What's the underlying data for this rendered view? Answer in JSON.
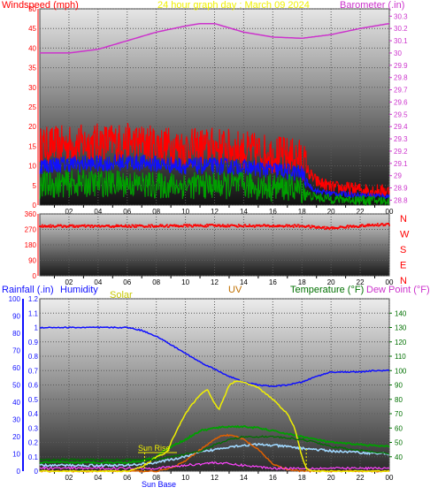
{
  "colors": {
    "red": "#ff0000",
    "blue": "#1010ff",
    "green": "#00a000",
    "magenta": "#cc33cc",
    "yellow": "#f0f000",
    "orange": "#e06000",
    "darkgreen": "#007000",
    "gold": "#c8c800",
    "olive": "#808000",
    "darkorange": "#c07000",
    "lightblue": "#a0d8ff",
    "pink": "#ff44ff"
  },
  "chart_data": [
    {
      "type": "line",
      "title": "24 hour graph day : March 09 2024",
      "x_ticks": [
        "02",
        "04",
        "06",
        "08",
        "10",
        "12",
        "14",
        "16",
        "18",
        "20",
        "22",
        "00"
      ],
      "left_axis": {
        "label": "Windspeed (mph)",
        "ticks": [
          0,
          5,
          10,
          15,
          20,
          25,
          30,
          35,
          40,
          45,
          50
        ],
        "range": [
          0,
          50
        ]
      },
      "right_axis": {
        "label": "Barometer (.in)",
        "ticks": [
          "28.8",
          "28.9",
          "29",
          "29.1",
          "29.2",
          "29.3",
          "29.4",
          "29.5",
          "29.6",
          "29.7",
          "29.8",
          "29.9",
          "30",
          "30.1",
          "30.2",
          "30.3"
        ],
        "range": [
          28.76,
          30.36
        ]
      },
      "series": [
        {
          "hours": [
            0,
            2,
            4,
            6,
            8,
            10,
            11,
            12,
            14,
            16,
            18,
            20,
            22,
            24
          ],
          "values": [
            30.0,
            30.0,
            30.03,
            30.1,
            30.17,
            30.22,
            30.24,
            30.24,
            30.17,
            30.13,
            30.12,
            30.15,
            30.2,
            30.24
          ]
        },
        {
          "hours": [
            0,
            2,
            4,
            6,
            8,
            10,
            12,
            14,
            16,
            17,
            18,
            18.5,
            19,
            20,
            22,
            24
          ],
          "values": [
            15,
            15.5,
            16,
            16,
            15.5,
            14.5,
            15,
            14,
            13,
            12.5,
            12,
            8,
            6,
            4.5,
            4,
            3.5
          ]
        },
        {
          "hours": [
            0,
            2,
            4,
            6,
            8,
            10,
            12,
            14,
            16,
            17,
            18,
            18.5,
            19,
            20,
            22,
            24
          ],
          "values": [
            10,
            10.5,
            10.5,
            11,
            10.5,
            10,
            10,
            9.5,
            9,
            8.5,
            8,
            5,
            3.5,
            3,
            2.5,
            2.2
          ]
        },
        {
          "hours": [
            0,
            2,
            4,
            6,
            8,
            10,
            12,
            14,
            16,
            17,
            18,
            18.5,
            19,
            20,
            22,
            24
          ],
          "values": [
            5,
            5.5,
            5.5,
            5.5,
            5,
            5,
            5,
            5,
            4.5,
            4.5,
            4,
            2.5,
            2,
            1.6,
            1.3,
            1
          ]
        }
      ]
    },
    {
      "type": "scatter",
      "x_ticks": [
        "02",
        "04",
        "06",
        "08",
        "10",
        "12",
        "14",
        "16",
        "18",
        "20",
        "22",
        "00"
      ],
      "left_axis": {
        "ticks": [
          "0",
          "90",
          "180",
          "270",
          "360"
        ],
        "range": [
          0,
          360
        ]
      },
      "right_labels": [
        "N",
        "W",
        "S",
        "E",
        "N"
      ],
      "series": [
        {
          "hours": [
            0,
            4,
            8,
            12,
            16,
            18,
            19,
            20,
            21,
            22,
            24
          ],
          "values": [
            290,
            288,
            290,
            292,
            290,
            290,
            282,
            276,
            285,
            290,
            300
          ]
        }
      ]
    },
    {
      "type": "line",
      "x_ticks": [
        "02",
        "04",
        "06",
        "08",
        "10",
        "12",
        "14",
        "16",
        "18",
        "20",
        "22",
        "00"
      ],
      "left_axis": {
        "label": "Rainfall (.in)",
        "ticks": [
          "0",
          "10",
          "20",
          "30",
          "40",
          "50",
          "60",
          "70",
          "80",
          "90",
          "100"
        ],
        "range": [
          0,
          100
        ]
      },
      "inner_axis": {
        "ticks": [
          "0",
          "0.1",
          "0.2",
          "0.3",
          "0.4",
          "0.5",
          "0.6",
          "0.7",
          "0.8",
          "0.9",
          "1",
          "1.1",
          "1.2"
        ],
        "range": [
          0,
          1.2
        ]
      },
      "right_axis": {
        "label": "Temperature (°F)",
        "ticks": [
          "40",
          "50",
          "60",
          "70",
          "80",
          "90",
          "100",
          "110",
          "120",
          "130",
          "140"
        ],
        "range": [
          30,
          150
        ]
      },
      "legend": {
        "humidity": "Humidity",
        "solar": "Solar",
        "uv": "UV",
        "dewpoint": "Dew Point (°F)"
      },
      "annotations": {
        "sunrise": "Sun Rise",
        "sunset": "Sun Rise",
        "sunset_prefix": "Sun Base"
      },
      "series": [
        {
          "hours": [
            0,
            2,
            4,
            6,
            7,
            8,
            9,
            10,
            11,
            12,
            13,
            14,
            15,
            16,
            17,
            18,
            19,
            20,
            22,
            23,
            24
          ],
          "values": [
            130,
            130,
            130,
            130,
            128,
            124,
            118,
            112,
            106,
            101,
            96,
            92,
            90,
            89,
            90,
            92,
            96,
            99,
            99,
            100,
            100
          ]
        },
        {
          "hours": [
            0,
            6,
            7,
            8,
            8.5,
            9,
            10,
            11,
            12,
            12.5,
            13,
            13.5,
            14,
            15,
            16,
            17,
            18,
            19,
            20,
            24
          ],
          "values": [
            36,
            36,
            37,
            40,
            44,
            47,
            52,
            58,
            60,
            60.5,
            61,
            61,
            61,
            60,
            58,
            56,
            54,
            52,
            50,
            47
          ]
        },
        {
          "hours": [
            0,
            6,
            7,
            8,
            9,
            10,
            11,
            12,
            13,
            14,
            15,
            16,
            17,
            18,
            19,
            20,
            24
          ],
          "values": [
            34,
            34,
            35,
            36,
            38,
            40,
            43,
            45,
            47,
            48,
            48.5,
            48,
            47,
            46,
            45,
            44,
            42
          ]
        },
        {
          "hours": [
            0,
            7,
            8,
            9,
            10,
            11,
            12,
            13,
            14,
            15,
            16,
            17,
            18,
            19,
            20,
            24
          ],
          "values": [
            0.08,
            0.08,
            0.08,
            0.1,
            0.12,
            0.14,
            0.18,
            0.22,
            0.24,
            0.24,
            0.24,
            0.23,
            0.22,
            0.2,
            0.17,
            0.12
          ]
        },
        {
          "hours": [
            0,
            6,
            7,
            7.5,
            8,
            8.5,
            8.8,
            9,
            9.5,
            10,
            10.5,
            11,
            11.5,
            12,
            12.3,
            12.6,
            13,
            13.5,
            14,
            15,
            16,
            17,
            17.5,
            18,
            18.3,
            18.6,
            24
          ],
          "values": [
            0,
            0,
            0.03,
            0.06,
            0.1,
            0.12,
            0.14,
            0.2,
            0.3,
            0.4,
            0.47,
            0.53,
            0.57,
            0.47,
            0.43,
            0.5,
            0.6,
            0.63,
            0.62,
            0.58,
            0.5,
            0.4,
            0.3,
            0.1,
            0.02,
            0,
            0
          ]
        },
        {
          "hours": [
            0,
            8,
            9,
            10,
            11,
            12,
            12.5,
            13,
            13.5,
            14,
            15,
            16,
            17,
            18,
            24
          ],
          "values": [
            0,
            0,
            0.02,
            0.07,
            0.15,
            0.22,
            0.25,
            0.25,
            0.24,
            0.22,
            0.15,
            0.05,
            0.01,
            0,
            0
          ]
        },
        {
          "hours": [
            0,
            8,
            9,
            10,
            11,
            12,
            13,
            14,
            15,
            16,
            17,
            24
          ],
          "values": [
            0.02,
            0.02,
            0.03,
            0.04,
            0.05,
            0.06,
            0.05,
            0.04,
            0.03,
            0.02,
            0.02,
            0.02
          ]
        }
      ]
    }
  ]
}
